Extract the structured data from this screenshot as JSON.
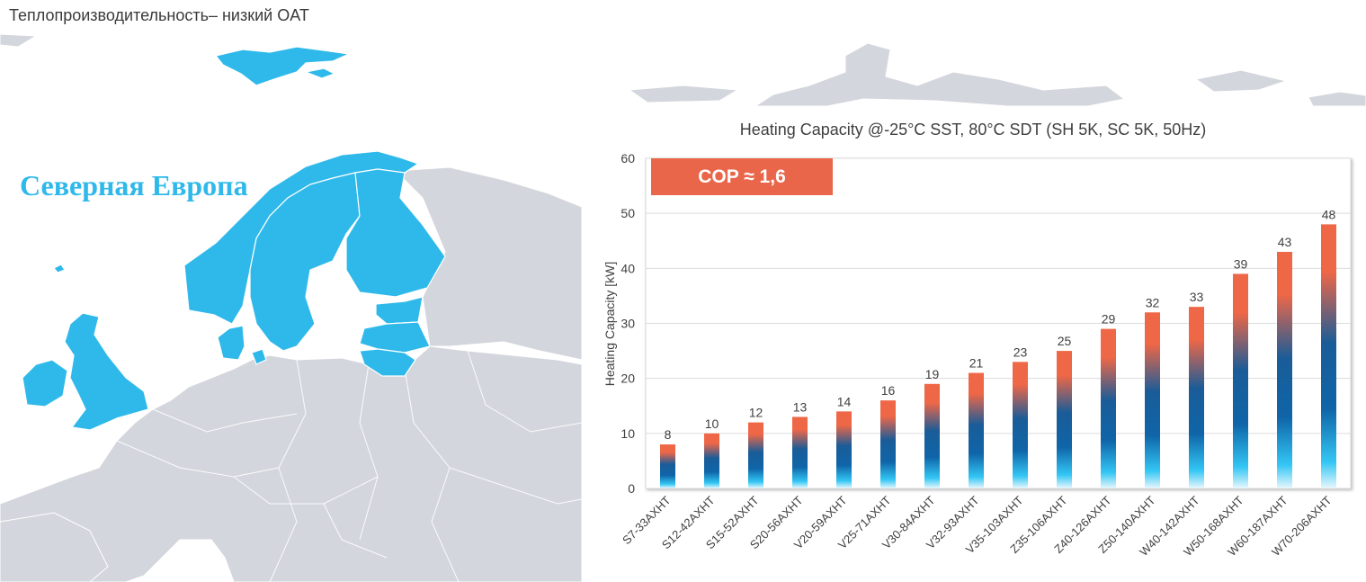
{
  "slide": {
    "title": "Теплопроизводительность– низкий OAT"
  },
  "map": {
    "region_label": "Северная Европа"
  },
  "badge": {
    "text": "COP ≈ 1,6"
  },
  "colors": {
    "highlight_region": "#2fb9ea",
    "land": "#d3d6dc",
    "bar_top": "#ee6747",
    "bar_mid": "#0f65a8",
    "bar_bottom": "#33c6f4",
    "badge": "#e9664a"
  },
  "chart_data": {
    "type": "bar",
    "title": "Heating Capacity @-25°C SST, 80°C SDT (SH 5K, SC 5K, 50Hz)",
    "xlabel": "",
    "ylabel": "Heating Capacity [kW]",
    "ylim": [
      0,
      60
    ],
    "yticks": [
      0,
      10,
      20,
      30,
      40,
      50,
      60
    ],
    "grid": true,
    "categories": [
      "S7-33AXHT",
      "S12-42AXHT",
      "S15-52AXHT",
      "S20-56AXHT",
      "V20-59AXHT",
      "V25-71AXHT",
      "V30-84AXHT",
      "V32-93AXHT",
      "V35-103AXHT",
      "Z35-106AXHT",
      "Z40-126AXHT",
      "Z50-140AXHT",
      "W40-142AXHT",
      "W50-168AXHT",
      "W60-187AXHT",
      "W70-206AXHT"
    ],
    "values": [
      8,
      10,
      12,
      13,
      14,
      16,
      19,
      21,
      23,
      25,
      29,
      32,
      33,
      39,
      43,
      48
    ]
  }
}
